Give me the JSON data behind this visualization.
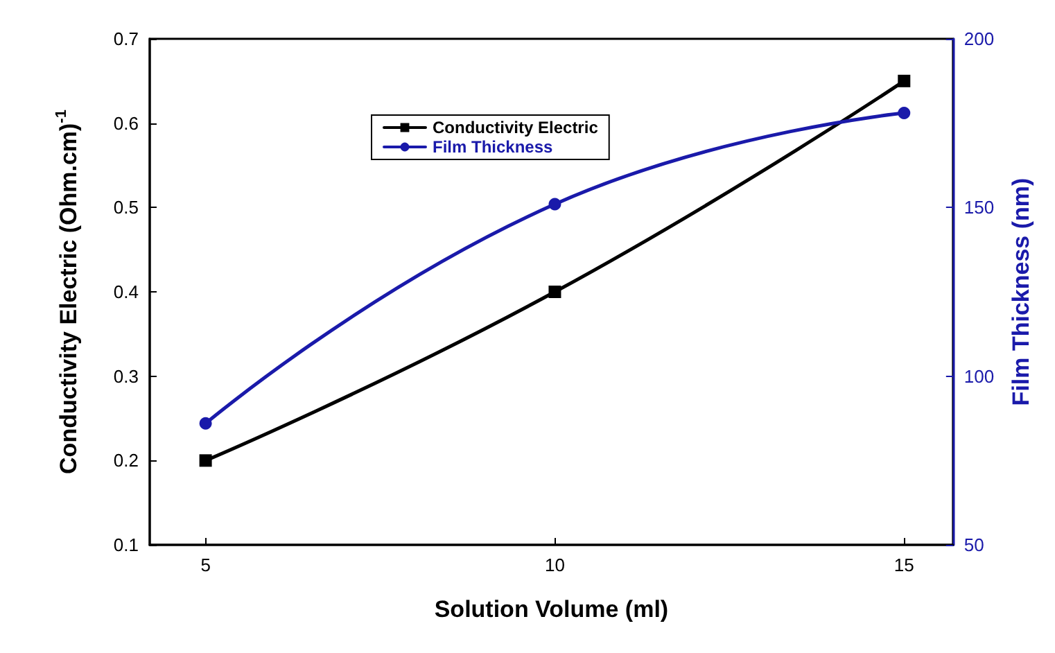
{
  "chart_data": {
    "type": "line",
    "xlabel": "Solution Volume (ml)",
    "ylabel": "Conductivity Electric (Ohm.cm)$^{-1}$",
    "y2label": "Film Thickness (nm)",
    "x": [
      5,
      10,
      15
    ],
    "series": [
      {
        "name": "Conductivity Electric",
        "color": "#000000",
        "values": [
          0.2,
          0.4,
          0.65
        ],
        "marker": "square"
      },
      {
        "name": "Film Thickness",
        "color": "#1a1aaa",
        "values": [
          86,
          151,
          178
        ],
        "axis": "y2",
        "marker": "circle"
      }
    ],
    "xlim": [
      4.2,
      15.7
    ],
    "xticks": [
      5,
      10,
      15
    ],
    "ylim": [
      0.1,
      0.7
    ],
    "yticks": [
      0.1,
      0.2,
      0.3,
      0.4,
      0.5,
      0.6,
      0.7
    ],
    "y2lim": [
      50,
      200
    ],
    "y2ticks": [
      50,
      100,
      150,
      200
    ],
    "legend": "top",
    "grid": false
  }
}
